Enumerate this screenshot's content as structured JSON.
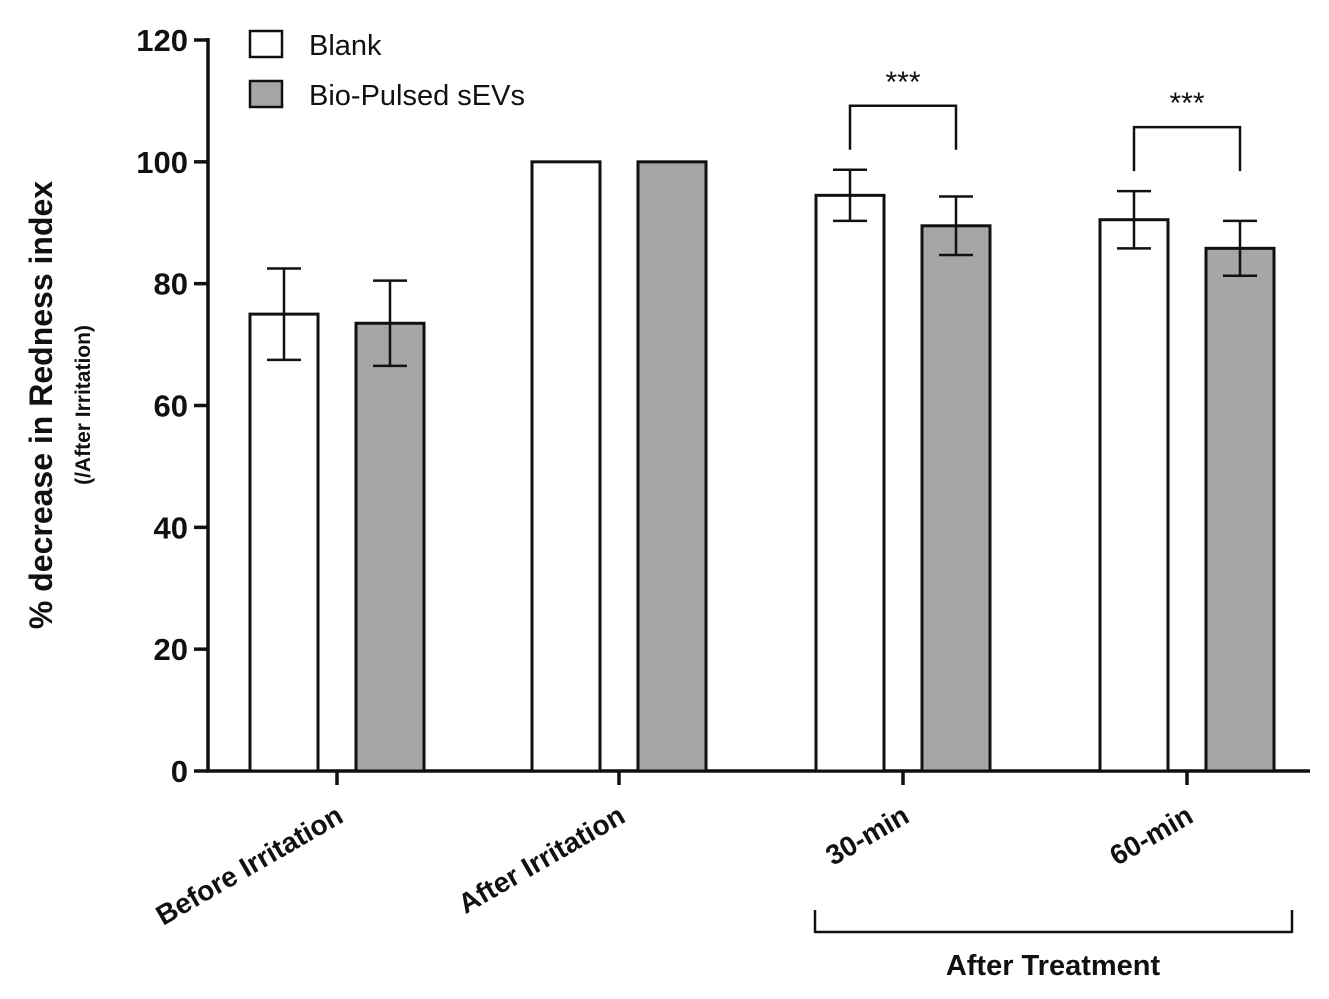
{
  "chart_data": {
    "type": "bar",
    "title": "",
    "xlabel": "",
    "ylabel": "% decrease in Redness index",
    "ylabel_sub": "(/After Irritation)",
    "ylim": [
      0,
      120
    ],
    "yticks": [
      0,
      20,
      40,
      60,
      80,
      100,
      120
    ],
    "categories": [
      "Before Irritation",
      "After Irritation",
      "30-min",
      "60-min"
    ],
    "series": [
      {
        "name": "Blank",
        "color": "#ffffff",
        "values": [
          75,
          100,
          94.5,
          90.5
        ],
        "errors": [
          7.5,
          0,
          4.2,
          4.7
        ]
      },
      {
        "name": "Bio-Pulsed sEVs",
        "color": "#a6a6a8",
        "values": [
          73.5,
          100,
          89.5,
          85.8
        ],
        "errors": [
          7.0,
          0,
          4.8,
          4.5
        ]
      }
    ],
    "legend": {
      "position": "top-left"
    },
    "group_bracket": {
      "label": "After Treatment",
      "categories": [
        "30-min",
        "60-min"
      ]
    },
    "significance": [
      {
        "category": "30-min",
        "label": "***"
      },
      {
        "category": "60-min",
        "label": "***"
      }
    ]
  }
}
